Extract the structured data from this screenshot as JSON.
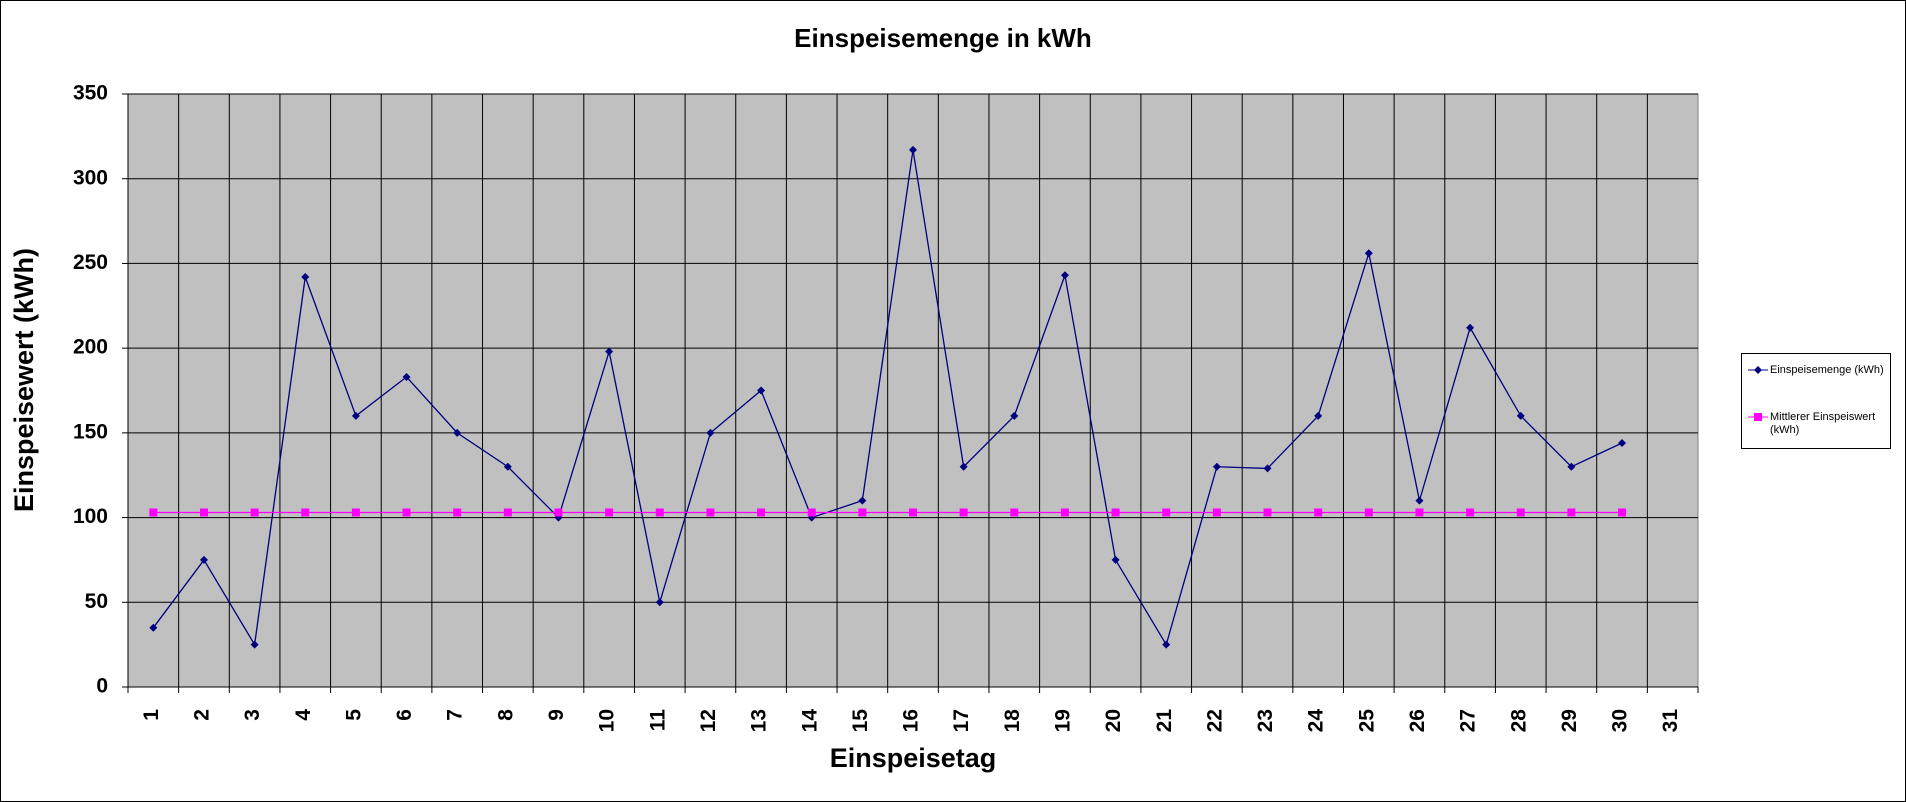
{
  "chart_data": {
    "type": "line",
    "title": "Einspeisemenge in kWh",
    "x_label": "Einspeisetag",
    "y_label": "Einspeisewert  (kWh)",
    "categories": [
      "1",
      "2",
      "3",
      "4",
      "5",
      "6",
      "7",
      "8",
      "9",
      "10",
      "11",
      "12",
      "13",
      "14",
      "15",
      "16",
      "17",
      "18",
      "19",
      "20",
      "21",
      "22",
      "23",
      "24",
      "25",
      "26",
      "27",
      "28",
      "29",
      "30",
      "31"
    ],
    "series": [
      {
        "name": "Einspeisemenge (kWh)",
        "color": "#000080",
        "marker": "diamond",
        "values": [
          35,
          75,
          25,
          242,
          160,
          183,
          150,
          130,
          100,
          198,
          50,
          150,
          175,
          100,
          110,
          317,
          130,
          160,
          243,
          75,
          25,
          130,
          129,
          160,
          256,
          110,
          212,
          160,
          130,
          144,
          null
        ]
      },
      {
        "name": "Mittlerer Einspeiswert (kWh)",
        "color": "#ff00ff",
        "marker": "square",
        "values": [
          103,
          103,
          103,
          103,
          103,
          103,
          103,
          103,
          103,
          103,
          103,
          103,
          103,
          103,
          103,
          103,
          103,
          103,
          103,
          103,
          103,
          103,
          103,
          103,
          103,
          103,
          103,
          103,
          103,
          103,
          null
        ]
      }
    ],
    "ylim": [
      0,
      350
    ],
    "yticks": [
      0,
      50,
      100,
      150,
      200,
      250,
      300,
      350
    ],
    "grid": true,
    "legend": "right",
    "plot_background": "#c0c0c0"
  }
}
